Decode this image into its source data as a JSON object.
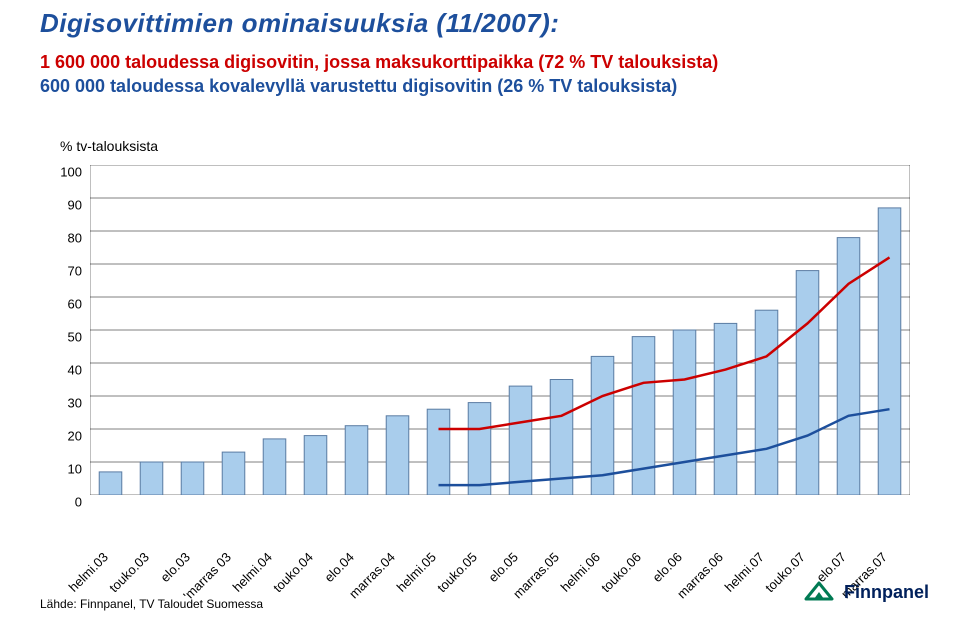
{
  "title": {
    "text": "Digisovittimien ominaisuuksia (11/2007):",
    "color": "#1d4f9c",
    "fontsize": 26
  },
  "subtitle1": {
    "text": "1 600 000  taloudessa digisovitin, jossa maksukorttipaikka (72 % TV talouksista)",
    "color": "#cc0000",
    "fontsize": 18
  },
  "subtitle2": {
    "text": "600 000 taloudessa kovalevyllä varustettu digisovitin (26 % TV talouksista)",
    "color": "#1d4f9c",
    "fontsize": 18
  },
  "axis_title": {
    "text": "% tv-talouksista",
    "fontsize": 14,
    "color": "#000000"
  },
  "chart": {
    "type": "bar_with_lines",
    "background_color": "#ffffff",
    "grid_color": "#000000",
    "grid_width": 0.5,
    "ylim": [
      0,
      100
    ],
    "ytick_step": 10,
    "y_fontsize": 13,
    "x_fontsize": 13,
    "x_rotation_deg": -45,
    "categories": [
      "helmi.03",
      "touko.03",
      "elo.03",
      "'marras 03",
      "helmi.04",
      "touko.04",
      "elo.04",
      "marras.04",
      "helmi.05",
      "touko.05",
      "elo.05",
      "marras.05",
      "helmi.06",
      "touko.06",
      "elo.06",
      "marras.06",
      "helmi.07",
      "touko.07",
      "elo.07",
      "marras.07"
    ],
    "bars": [
      7,
      10,
      10,
      13,
      17,
      18,
      21,
      24,
      26,
      28,
      33,
      35,
      42,
      48,
      50,
      52,
      56,
      68,
      78,
      87
    ],
    "bar_fill": "#a9cdec",
    "bar_stroke": "#5a7ca3",
    "bar_width": 0.55,
    "line_series": [
      {
        "name": "maksukorttipaikka",
        "color": "#cc0000",
        "width": 2.5,
        "start_index": 8,
        "values": [
          20,
          20,
          22,
          24,
          30,
          34,
          35,
          38,
          42,
          52,
          64,
          72
        ]
      },
      {
        "name": "kovalevy",
        "color": "#1d4f9c",
        "width": 2.5,
        "start_index": 8,
        "values": [
          3,
          3,
          4,
          5,
          6,
          8,
          10,
          12,
          14,
          18,
          24,
          26
        ]
      }
    ]
  },
  "footer": {
    "text": "Lähde: Finnpanel, TV Taloudet  Suomessa",
    "fontsize": 12,
    "color": "#000000"
  },
  "logo": {
    "name": "Finnpanel",
    "brand_color": "#007a53",
    "text_color": "#00205b"
  }
}
